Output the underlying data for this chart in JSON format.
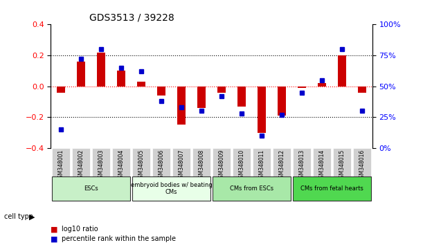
{
  "title": "GDS3513 / 39228",
  "samples": [
    "GSM348001",
    "GSM348002",
    "GSM348003",
    "GSM348004",
    "GSM348005",
    "GSM348006",
    "GSM348007",
    "GSM348008",
    "GSM348009",
    "GSM348010",
    "GSM348011",
    "GSM348012",
    "GSM348013",
    "GSM348014",
    "GSM348015",
    "GSM348016"
  ],
  "log10_ratio": [
    -0.04,
    0.16,
    0.22,
    0.1,
    0.03,
    -0.06,
    -0.25,
    -0.14,
    -0.04,
    -0.13,
    -0.3,
    -0.19,
    -0.01,
    0.02,
    0.2,
    -0.04
  ],
  "percentile_rank": [
    15,
    72,
    80,
    65,
    62,
    38,
    33,
    30,
    42,
    28,
    10,
    27,
    45,
    55,
    80,
    30
  ],
  "cell_type_groups": [
    {
      "label": "ESCs",
      "start": 0,
      "end": 4,
      "color": "#c8f0c8"
    },
    {
      "label": "embryoid bodies w/ beating\nCMs",
      "start": 4,
      "end": 8,
      "color": "#e8ffe8"
    },
    {
      "label": "CMs from ESCs",
      "start": 8,
      "end": 12,
      "color": "#a8e8a8"
    },
    {
      "label": "CMs from fetal hearts",
      "start": 12,
      "end": 16,
      "color": "#50d850"
    }
  ],
  "bar_color_red": "#cc0000",
  "marker_color_blue": "#0000cc",
  "ylabel_left": "",
  "ylabel_right": "",
  "ylim_left": [
    -0.4,
    0.4
  ],
  "ylim_right": [
    0,
    100
  ],
  "yticks_left": [
    -0.4,
    -0.2,
    0,
    0.2,
    0.4
  ],
  "yticks_right": [
    0,
    25,
    50,
    75,
    100
  ],
  "background_color": "#ffffff",
  "grid_color": "#000000"
}
